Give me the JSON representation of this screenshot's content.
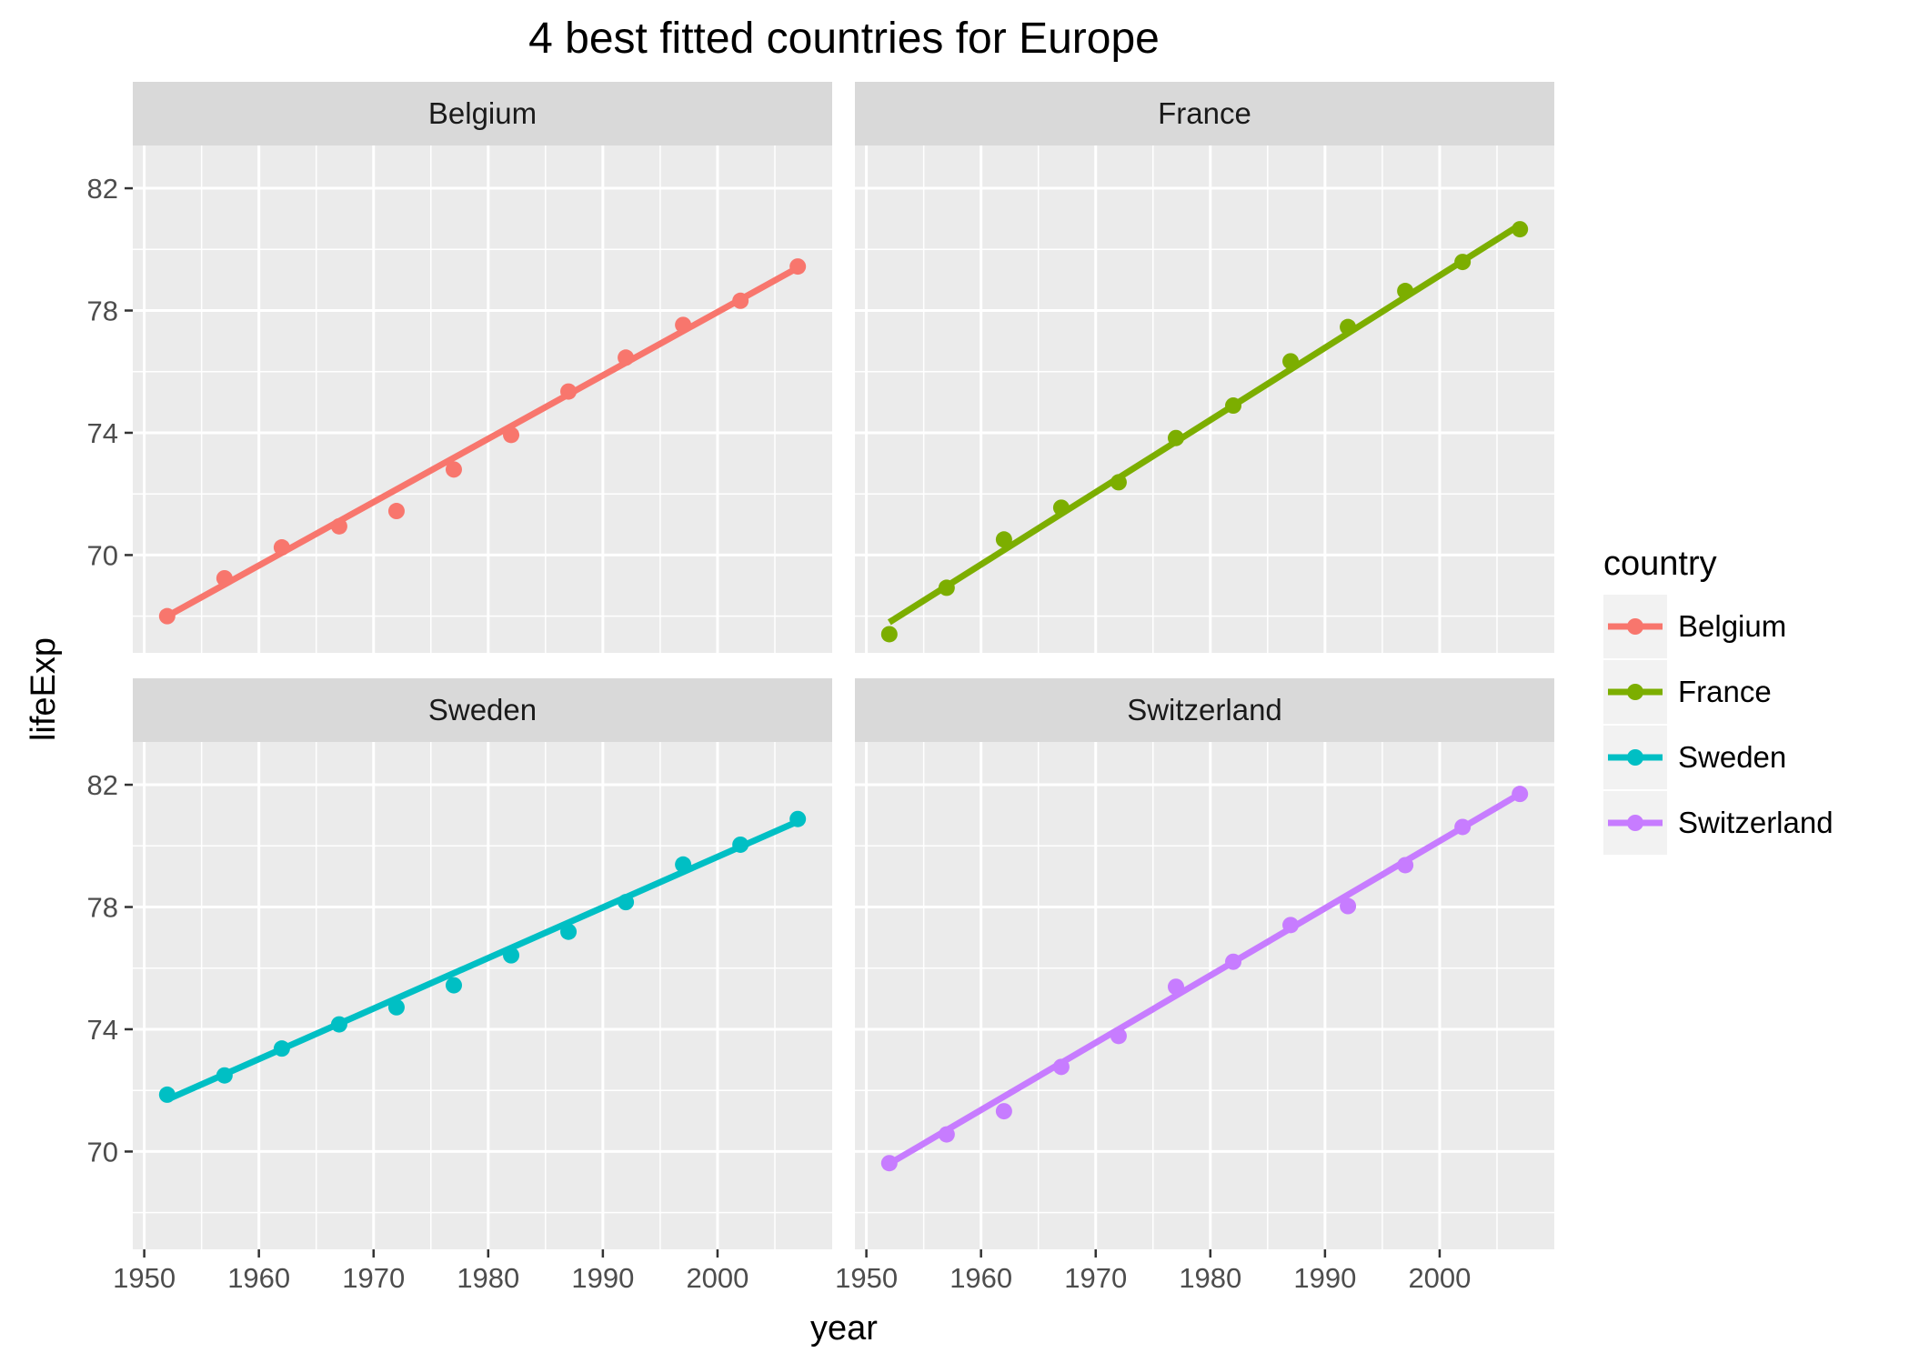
{
  "chart_data": {
    "type": "scatter",
    "title": "4 best fitted countries for Europe",
    "xlabel": "year",
    "ylabel": "lifeExp",
    "xlim": [
      1949,
      2010
    ],
    "ylim": [
      66.8,
      83.4
    ],
    "x_ticks": [
      1950,
      1960,
      1970,
      1980,
      1990,
      2000
    ],
    "y_ticks": [
      70,
      74,
      78,
      82
    ],
    "grid": true,
    "legend": {
      "title": "country",
      "position": "right"
    },
    "series": [
      {
        "name": "Belgium",
        "color": "#F8766D",
        "x": [
          1952,
          1957,
          1962,
          1967,
          1972,
          1977,
          1982,
          1987,
          1992,
          1997,
          2002,
          2007
        ],
        "y": [
          68.0,
          69.24,
          70.25,
          70.94,
          71.44,
          72.8,
          73.93,
          75.35,
          76.46,
          77.53,
          78.32,
          79.44
        ],
        "fit": [
          68.0,
          79.4
        ]
      },
      {
        "name": "France",
        "color": "#7CAE00",
        "x": [
          1952,
          1957,
          1962,
          1967,
          1972,
          1977,
          1982,
          1987,
          1992,
          1997,
          2002,
          2007
        ],
        "y": [
          67.41,
          68.93,
          70.51,
          71.55,
          72.38,
          73.83,
          74.89,
          76.34,
          77.46,
          78.64,
          79.59,
          80.66
        ],
        "fit": [
          67.8,
          80.8
        ]
      },
      {
        "name": "Sweden",
        "color": "#00BFC4",
        "x": [
          1952,
          1957,
          1962,
          1967,
          1972,
          1977,
          1982,
          1987,
          1992,
          1997,
          2002,
          2007
        ],
        "y": [
          71.86,
          72.49,
          73.37,
          74.16,
          74.72,
          75.44,
          76.42,
          77.19,
          78.16,
          79.39,
          80.04,
          80.88
        ],
        "fit": [
          71.7,
          80.8
        ]
      },
      {
        "name": "Switzerland",
        "color": "#C77CFF",
        "x": [
          1952,
          1957,
          1962,
          1967,
          1972,
          1977,
          1982,
          1987,
          1992,
          1997,
          2002,
          2007
        ],
        "y": [
          69.62,
          70.56,
          71.32,
          72.77,
          73.78,
          75.39,
          76.21,
          77.41,
          78.03,
          79.37,
          80.62,
          81.7
        ],
        "fit": [
          69.6,
          81.7
        ]
      }
    ]
  }
}
